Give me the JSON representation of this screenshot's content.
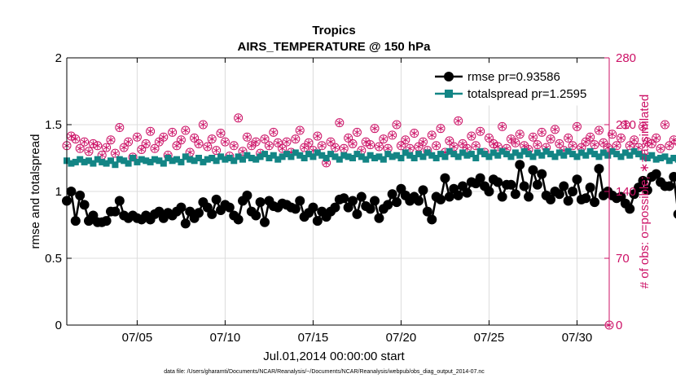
{
  "chart_data": {
    "type": "line",
    "title": "Tropics",
    "subtitle": "AIRS_TEMPERATURE @ 150 hPa",
    "xlabel": "Jul.01,2014 00:00:00 start",
    "ylabel": "rmse and totalspread",
    "y2label": "# of obs: o=possible; ∗=assimilated",
    "footnote": "data file: /Users/gharamti/Documents/NCAR/Reanalysis/~/Documents/NCAR/Reanalysis/webpub/obs_diag_output_2014-07.nc",
    "xlim": [
      1.0,
      31.83
    ],
    "ylim": [
      0,
      2
    ],
    "y2lim": [
      0,
      280
    ],
    "xticks": [
      5,
      10,
      15,
      20,
      25,
      30
    ],
    "xtick_labels": [
      "07/05",
      "07/10",
      "07/15",
      "07/20",
      "07/25",
      "07/30"
    ],
    "yticks": [
      0,
      0.5,
      1,
      1.5,
      2
    ],
    "ytick_labels": [
      "0",
      "0.5",
      "1",
      "1.5",
      "2"
    ],
    "y2ticks": [
      0,
      70,
      140,
      210,
      280
    ],
    "y2tick_labels": [
      "0",
      "70",
      "140",
      "210",
      "280"
    ],
    "legend_position": "top-right",
    "x_step": 0.25,
    "x_start": 1.0,
    "colors": {
      "rmse": "#000000",
      "spread": "#138585",
      "obs": "#cc1166",
      "axis": "#000000",
      "right_axis": "#cc1166"
    },
    "series": [
      {
        "name": "rmse pr=0.93586",
        "key": "rmse",
        "values": [
          0.93,
          1.0,
          0.78,
          0.97,
          0.9,
          0.78,
          0.82,
          0.77,
          0.77,
          0.78,
          0.85,
          0.85,
          0.93,
          0.82,
          0.8,
          0.82,
          0.8,
          0.79,
          0.82,
          0.79,
          0.83,
          0.85,
          0.8,
          0.84,
          0.82,
          0.85,
          0.88,
          0.76,
          0.85,
          0.8,
          0.84,
          0.92,
          0.88,
          0.83,
          0.94,
          0.86,
          0.9,
          0.88,
          0.82,
          0.79,
          0.93,
          0.97,
          0.85,
          0.82,
          0.92,
          0.77,
          0.93,
          0.89,
          0.88,
          0.91,
          0.9,
          0.88,
          0.87,
          0.93,
          0.81,
          0.84,
          0.88,
          0.78,
          0.85,
          0.81,
          0.85,
          0.88,
          0.94,
          0.95,
          0.88,
          0.93,
          0.83,
          0.96,
          0.89,
          0.87,
          0.93,
          0.8,
          0.87,
          0.9,
          0.98,
          0.92,
          1.02,
          0.97,
          0.93,
          0.96,
          0.93,
          1.01,
          0.85,
          0.79,
          0.96,
          0.94,
          1.1,
          0.96,
          1.02,
          0.97,
          1.04,
          0.99,
          1.07,
          1.06,
          1.1,
          1.04,
          1.0,
          1.09,
          1.07,
          0.96,
          1.05,
          1.05,
          0.98,
          1.2,
          1.04,
          0.96,
          1.16,
          1.05,
          1.13,
          0.97,
          0.94,
          1.0,
          0.98,
          1.04,
          0.93,
          1.0,
          1.09,
          0.94,
          0.95,
          1.03,
          0.92,
          1.17,
          0.97,
          1.0,
          0.97,
          0.95,
          0.96,
          0.91,
          0.87,
          0.98,
          1.03,
          1.08,
          1.01,
          1.11,
          1.13,
          1.07,
          1.04,
          1.04,
          1.11,
          0.83
        ]
      },
      {
        "name": "totalspread pr=1.2595",
        "key": "spread",
        "values": [
          1.23,
          1.21,
          1.22,
          1.24,
          1.22,
          1.23,
          1.21,
          1.24,
          1.22,
          1.21,
          1.23,
          1.2,
          1.24,
          1.23,
          1.21,
          1.25,
          1.22,
          1.24,
          1.23,
          1.22,
          1.24,
          1.23,
          1.21,
          1.25,
          1.23,
          1.24,
          1.22,
          1.26,
          1.24,
          1.23,
          1.25,
          1.22,
          1.24,
          1.25,
          1.23,
          1.26,
          1.24,
          1.25,
          1.23,
          1.26,
          1.24,
          1.27,
          1.25,
          1.24,
          1.26,
          1.28,
          1.25,
          1.27,
          1.24,
          1.26,
          1.28,
          1.26,
          1.29,
          1.27,
          1.25,
          1.28,
          1.26,
          1.29,
          1.27,
          1.25,
          1.28,
          1.26,
          1.24,
          1.27,
          1.26,
          1.25,
          1.28,
          1.26,
          1.24,
          1.27,
          1.25,
          1.26,
          1.24,
          1.28,
          1.26,
          1.27,
          1.25,
          1.29,
          1.27,
          1.25,
          1.28,
          1.26,
          1.29,
          1.27,
          1.25,
          1.28,
          1.26,
          1.3,
          1.28,
          1.26,
          1.29,
          1.27,
          1.28,
          1.25,
          1.3,
          1.28,
          1.26,
          1.29,
          1.27,
          1.3,
          1.28,
          1.26,
          1.29,
          1.27,
          1.3,
          1.28,
          1.26,
          1.29,
          1.27,
          1.3,
          1.28,
          1.26,
          1.29,
          1.27,
          1.3,
          1.28,
          1.26,
          1.29,
          1.27,
          1.3,
          1.28,
          1.26,
          1.29,
          1.27,
          1.3,
          1.28,
          1.26,
          1.29,
          1.27,
          1.3,
          1.28,
          1.26,
          1.25,
          1.27,
          1.24,
          1.25,
          1.26,
          1.23,
          1.25,
          1.24
        ]
      },
      {
        "name": "# of obs (possible / assimilated)",
        "key": "obs",
        "axis": "right",
        "values": [
          188,
          198,
          195,
          185,
          192,
          182,
          190,
          188,
          178,
          186,
          194,
          180,
          207,
          186,
          192,
          176,
          197,
          184,
          190,
          203,
          185,
          192,
          197,
          178,
          202,
          188,
          194,
          204,
          181,
          196,
          190,
          210,
          187,
          195,
          183,
          201,
          192,
          177,
          188,
          217,
          182,
          197,
          188,
          192,
          180,
          195,
          188,
          202,
          191,
          185,
          192,
          181,
          195,
          204,
          186,
          191,
          183,
          198,
          188,
          170,
          192,
          186,
          212,
          185,
          196,
          190,
          202,
          183,
          192,
          189,
          206,
          187,
          195,
          185,
          199,
          210,
          188,
          194,
          185,
          201,
          187,
          192,
          183,
          199,
          188,
          206,
          181,
          193,
          187,
          214,
          190,
          185,
          198,
          188,
          203,
          181,
          196,
          190,
          187,
          208,
          185,
          195,
          191,
          200,
          188,
          184,
          197,
          189,
          202,
          186,
          195,
          205,
          190,
          183,
          196,
          188,
          208,
          186,
          192,
          197,
          189,
          204,
          191,
          186,
          200,
          188,
          196,
          210,
          188,
          194,
          186,
          208,
          192,
          190,
          196,
          185,
          210,
          188,
          194,
          192
        ]
      }
    ]
  }
}
